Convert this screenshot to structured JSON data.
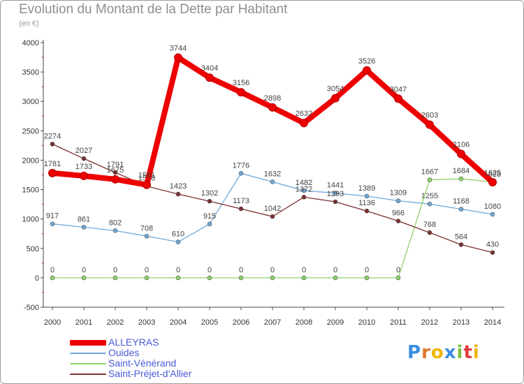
{
  "chart_data": {
    "type": "line",
    "title": "Evolution du Montant de la Dette par Habitant",
    "subtitle": "(en €)",
    "x": [
      "2000",
      "2001",
      "2002",
      "2003",
      "2004",
      "2005",
      "2006",
      "2007",
      "2008",
      "2009",
      "2010",
      "2011",
      "2012",
      "2013",
      "2014"
    ],
    "yticks": [
      -500,
      0,
      500,
      1000,
      1500,
      2000,
      2500,
      3000,
      3500,
      4000
    ],
    "ylim": [
      -500,
      4000
    ],
    "grid": false,
    "legend_position": "bottom-left",
    "series": [
      {
        "name": "ALLEYRAS",
        "color": "#ee0000",
        "values": [
          1781,
          1733,
          1675,
          1581,
          3744,
          3404,
          3156,
          2898,
          2632,
          3054,
          3526,
          3047,
          2603,
          2106,
          1625
        ]
      },
      {
        "name": "Ouides",
        "color": "#6fa8d8",
        "values": [
          917,
          861,
          802,
          708,
          610,
          915,
          1776,
          1632,
          1482,
          1441,
          1389,
          1309,
          1255,
          1168,
          1080
        ]
      },
      {
        "name": "Saint-Vénérand",
        "color": "#8ed36b",
        "values": [
          0,
          0,
          0,
          0,
          0,
          0,
          0,
          0,
          0,
          0,
          0,
          0,
          1667,
          1684,
          1628
        ]
      },
      {
        "name": "Saint-Préjet-d'Allier",
        "color": "#7a2f2f",
        "values": [
          2274,
          2027,
          1791,
          1558,
          1423,
          1302,
          1173,
          1042,
          1372,
          1293,
          1136,
          966,
          768,
          564,
          430
        ]
      }
    ]
  },
  "logo": {
    "letters": [
      "P",
      "r",
      "o",
      "x",
      "i",
      "t",
      "i"
    ],
    "colors": [
      "#3a8ee0",
      "#e0762b",
      "#f0b400",
      "#3a8ee0",
      "#7cc242",
      "#e03b3b",
      "#f0b400"
    ]
  }
}
